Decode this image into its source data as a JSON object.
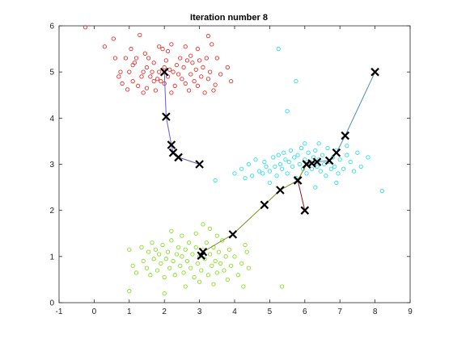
{
  "chart_data": {
    "type": "scatter",
    "title": "Iteration number 8",
    "xlabel": "",
    "ylabel": "",
    "xlim": [
      -1,
      9
    ],
    "ylim": [
      0,
      6
    ],
    "xticks": [
      -1,
      0,
      1,
      2,
      3,
      4,
      5,
      6,
      7,
      8,
      9
    ],
    "yticks": [
      0,
      1,
      2,
      3,
      4,
      5,
      6
    ],
    "grid": false,
    "colors": {
      "cluster_red": "#e8312c",
      "cluster_cyan": "#2fe0e6",
      "cluster_green": "#86e026",
      "path_1": "#6a5acd",
      "path_2": "#4c8fbd",
      "path_3": "#8b1a2e",
      "path_4": "#7a8b1f",
      "centroid": "#000000"
    },
    "clusters": [
      {
        "color_key": "cluster_red",
        "points": [
          [
            -0.25,
            5.97
          ],
          [
            0.3,
            5.55
          ],
          [
            0.55,
            5.72
          ],
          [
            0.6,
            5.3
          ],
          [
            0.7,
            4.9
          ],
          [
            0.75,
            5.0
          ],
          [
            0.8,
            4.75
          ],
          [
            0.9,
            5.3
          ],
          [
            1.0,
            5.0
          ],
          [
            1.05,
            5.5
          ],
          [
            1.1,
            4.8
          ],
          [
            1.15,
            5.2
          ],
          [
            1.2,
            5.3
          ],
          [
            1.25,
            4.7
          ],
          [
            1.3,
            5.8
          ],
          [
            1.35,
            4.9
          ],
          [
            1.4,
            5.0
          ],
          [
            1.45,
            5.4
          ],
          [
            1.5,
            4.65
          ],
          [
            1.5,
            5.1
          ],
          [
            1.55,
            5.3
          ],
          [
            1.6,
            4.9
          ],
          [
            1.65,
            5.0
          ],
          [
            1.7,
            5.2
          ],
          [
            1.75,
            4.6
          ],
          [
            1.8,
            4.85
          ],
          [
            1.85,
            5.55
          ],
          [
            1.9,
            4.8
          ],
          [
            1.95,
            5.5
          ],
          [
            2.0,
            4.75
          ],
          [
            2.0,
            5.1
          ],
          [
            2.05,
            5.25
          ],
          [
            2.1,
            4.9
          ],
          [
            2.15,
            5.05
          ],
          [
            2.2,
            5.6
          ],
          [
            2.25,
            5.0
          ],
          [
            2.3,
            4.7
          ],
          [
            2.35,
            5.15
          ],
          [
            2.4,
            4.95
          ],
          [
            2.45,
            5.3
          ],
          [
            2.5,
            4.85
          ],
          [
            2.55,
            5.1
          ],
          [
            2.6,
            4.75
          ],
          [
            2.65,
            5.25
          ],
          [
            2.7,
            4.6
          ],
          [
            2.75,
            4.95
          ],
          [
            2.8,
            5.2
          ],
          [
            2.85,
            4.8
          ],
          [
            2.9,
            5.05
          ],
          [
            2.95,
            4.7
          ],
          [
            3.0,
            5.25
          ],
          [
            3.05,
            4.9
          ],
          [
            3.1,
            5.1
          ],
          [
            3.15,
            4.55
          ],
          [
            3.2,
            5.3
          ],
          [
            3.25,
            4.85
          ],
          [
            3.3,
            5.0
          ],
          [
            3.35,
            5.6
          ],
          [
            3.4,
            4.6
          ],
          [
            3.5,
            5.3
          ],
          [
            3.6,
            4.95
          ],
          [
            3.8,
            5.1
          ],
          [
            3.9,
            4.8
          ],
          [
            2.1,
            5.45
          ],
          [
            1.85,
            5.0
          ],
          [
            1.4,
            4.55
          ],
          [
            2.6,
            5.55
          ],
          [
            2.95,
            5.5
          ],
          [
            3.25,
            5.78
          ],
          [
            2.2,
            4.55
          ],
          [
            1.7,
            4.8
          ],
          [
            1.1,
            5.15
          ],
          [
            3.45,
            4.72
          ],
          [
            2.75,
            5.35
          ],
          [
            0.95,
            4.62
          ]
        ]
      },
      {
        "color_key": "cluster_cyan",
        "points": [
          [
            3.45,
            2.65
          ],
          [
            4.0,
            2.8
          ],
          [
            4.2,
            2.9
          ],
          [
            4.4,
            3.0
          ],
          [
            4.5,
            2.75
          ],
          [
            4.6,
            3.1
          ],
          [
            4.7,
            2.85
          ],
          [
            4.8,
            2.8
          ],
          [
            4.85,
            3.05
          ],
          [
            4.9,
            2.95
          ],
          [
            5.0,
            2.85
          ],
          [
            5.1,
            3.15
          ],
          [
            5.15,
            2.95
          ],
          [
            5.2,
            2.75
          ],
          [
            5.25,
            3.2
          ],
          [
            5.3,
            3.0
          ],
          [
            5.35,
            2.9
          ],
          [
            5.4,
            3.25
          ],
          [
            5.45,
            3.1
          ],
          [
            5.5,
            2.8
          ],
          [
            5.55,
            3.05
          ],
          [
            5.6,
            3.3
          ],
          [
            5.65,
            2.95
          ],
          [
            5.7,
            3.15
          ],
          [
            5.75,
            2.7
          ],
          [
            5.8,
            3.2
          ],
          [
            5.85,
            3.0
          ],
          [
            5.9,
            3.35
          ],
          [
            5.95,
            2.9
          ],
          [
            6.0,
            3.1
          ],
          [
            6.05,
            2.8
          ],
          [
            6.1,
            3.25
          ],
          [
            6.15,
            3.05
          ],
          [
            6.2,
            2.9
          ],
          [
            6.25,
            3.15
          ],
          [
            6.3,
            3.3
          ],
          [
            6.35,
            2.95
          ],
          [
            6.4,
            3.1
          ],
          [
            6.45,
            2.85
          ],
          [
            6.5,
            3.2
          ],
          [
            6.55,
            3.0
          ],
          [
            6.6,
            2.75
          ],
          [
            6.65,
            3.35
          ],
          [
            6.7,
            3.05
          ],
          [
            6.75,
            2.9
          ],
          [
            6.8,
            3.15
          ],
          [
            6.85,
            2.95
          ],
          [
            6.9,
            3.3
          ],
          [
            6.95,
            2.8
          ],
          [
            7.0,
            3.1
          ],
          [
            7.1,
            2.9
          ],
          [
            7.2,
            3.2
          ],
          [
            7.3,
            3.05
          ],
          [
            7.4,
            2.85
          ],
          [
            7.5,
            3.25
          ],
          [
            7.6,
            2.95
          ],
          [
            7.8,
            3.15
          ],
          [
            8.2,
            2.42
          ],
          [
            5.25,
            5.5
          ],
          [
            5.75,
            4.8
          ],
          [
            5.5,
            4.15
          ],
          [
            6.3,
            2.5
          ],
          [
            5.0,
            2.6
          ],
          [
            6.9,
            2.6
          ],
          [
            6.0,
            3.45
          ],
          [
            6.4,
            3.45
          ],
          [
            7.2,
            3.4
          ],
          [
            4.3,
            2.7
          ]
        ]
      },
      {
        "color_key": "cluster_green",
        "points": [
          [
            1.0,
            0.25
          ],
          [
            1.0,
            1.15
          ],
          [
            1.1,
            0.8
          ],
          [
            1.2,
            0.65
          ],
          [
            1.35,
            1.2
          ],
          [
            1.4,
            0.9
          ],
          [
            1.5,
            0.75
          ],
          [
            1.55,
            1.1
          ],
          [
            1.6,
            0.6
          ],
          [
            1.65,
            1.3
          ],
          [
            1.7,
            0.95
          ],
          [
            1.75,
            1.15
          ],
          [
            1.8,
            0.7
          ],
          [
            1.85,
            1.05
          ],
          [
            1.9,
            0.85
          ],
          [
            1.95,
            1.25
          ],
          [
            2.0,
            0.55
          ],
          [
            2.05,
            0.95
          ],
          [
            2.1,
            1.1
          ],
          [
            2.15,
            0.75
          ],
          [
            2.2,
            1.35
          ],
          [
            2.25,
            0.9
          ],
          [
            2.3,
            0.6
          ],
          [
            2.35,
            1.05
          ],
          [
            2.4,
            1.2
          ],
          [
            2.45,
            0.8
          ],
          [
            2.5,
            1.0
          ],
          [
            2.55,
            0.65
          ],
          [
            2.6,
            1.15
          ],
          [
            2.65,
            0.9
          ],
          [
            2.7,
            1.3
          ],
          [
            2.75,
            0.75
          ],
          [
            2.8,
            1.05
          ],
          [
            2.85,
            0.55
          ],
          [
            2.9,
            1.2
          ],
          [
            2.95,
            0.85
          ],
          [
            3.0,
            1.0
          ],
          [
            3.05,
            0.7
          ],
          [
            3.1,
            1.15
          ],
          [
            3.15,
            0.95
          ],
          [
            3.2,
            1.3
          ],
          [
            3.25,
            0.6
          ],
          [
            3.3,
            1.05
          ],
          [
            3.35,
            0.8
          ],
          [
            3.4,
            1.2
          ],
          [
            3.45,
            0.9
          ],
          [
            3.5,
            0.65
          ],
          [
            3.55,
            1.1
          ],
          [
            3.6,
            0.85
          ],
          [
            3.65,
            1.35
          ],
          [
            3.7,
            0.7
          ],
          [
            3.75,
            1.0
          ],
          [
            3.8,
            0.5
          ],
          [
            3.85,
            1.15
          ],
          [
            3.9,
            0.8
          ],
          [
            4.0,
            1.0
          ],
          [
            4.1,
            0.6
          ],
          [
            4.2,
            0.85
          ],
          [
            4.25,
            0.35
          ],
          [
            4.3,
            1.25
          ],
          [
            4.35,
            1.1
          ],
          [
            4.4,
            0.75
          ],
          [
            2.5,
            1.45
          ],
          [
            2.2,
            1.55
          ],
          [
            3.1,
            1.7
          ],
          [
            3.3,
            1.6
          ],
          [
            3.5,
            1.45
          ],
          [
            2.9,
            1.5
          ],
          [
            2.6,
            0.35
          ],
          [
            3.0,
            0.45
          ],
          [
            2.0,
            0.2
          ],
          [
            3.4,
            0.4
          ],
          [
            5.35,
            0.35
          ]
        ]
      }
    ],
    "centroid_paths": [
      {
        "color_key": "path_1",
        "points": [
          [
            3.0,
            3.0
          ],
          [
            2.4,
            3.15
          ],
          [
            2.25,
            3.25
          ],
          [
            2.2,
            3.42
          ],
          [
            2.05,
            4.03
          ],
          [
            2.0,
            5.0
          ]
        ]
      },
      {
        "color_key": "path_2",
        "points": [
          [
            8.0,
            5.0
          ],
          [
            7.15,
            3.62
          ],
          [
            6.9,
            3.25
          ],
          [
            6.7,
            3.08
          ],
          [
            6.35,
            3.05
          ],
          [
            6.2,
            3.02
          ],
          [
            6.05,
            3.0
          ]
        ]
      },
      {
        "color_key": "path_3",
        "points": [
          [
            6.0,
            2.0
          ],
          [
            5.8,
            2.65
          ]
        ]
      },
      {
        "color_key": "path_4",
        "points": [
          [
            3.05,
            1.02
          ],
          [
            3.1,
            1.1
          ],
          [
            3.95,
            1.48
          ],
          [
            4.85,
            2.12
          ],
          [
            5.3,
            2.44
          ],
          [
            5.8,
            2.65
          ],
          [
            6.05,
            3.0
          ]
        ]
      }
    ]
  }
}
